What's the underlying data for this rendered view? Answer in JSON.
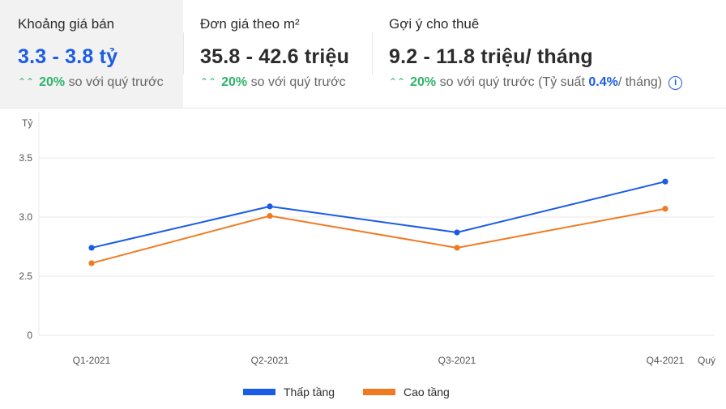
{
  "cards": [
    {
      "title": "Khoảng giá bán",
      "value": "3.3 - 3.8 tỷ",
      "change_arrow": "⌃⌃",
      "change_pct": "20%",
      "change_text": "so với quý trước"
    },
    {
      "title": "Đơn giá theo m²",
      "value": "35.8 - 42.6 triệu",
      "change_arrow": "⌃⌃",
      "change_pct": "20%",
      "change_text": "so với quý trước"
    },
    {
      "title": "Gợi ý cho thuê",
      "value": "9.2 - 11.8 triệu/ tháng",
      "change_arrow": "⌃⌃",
      "change_pct": "20%",
      "change_text": "so với quý trước",
      "yield_prefix": "(Tỷ suất",
      "yield_value": "0.4%",
      "yield_suffix": "/ tháng)",
      "info_icon": "i"
    }
  ],
  "colors": {
    "accent": "#1a5ce6",
    "up": "#2fb36b",
    "series1": "#1a5ce6",
    "series2": "#f07a22"
  },
  "chart_data": {
    "type": "line",
    "ylabel": "Tỷ",
    "xlabel": "Quý",
    "categories": [
      "Q1-2021",
      "Q2-2021",
      "Q3-2021",
      "Q4-2021"
    ],
    "yticks": [
      "0",
      "2.5",
      "3.0",
      "3.5"
    ],
    "series": [
      {
        "name": "Thấp tầng",
        "color": "#1a5ce6",
        "values": [
          2.74,
          3.09,
          2.87,
          3.3
        ]
      },
      {
        "name": "Cao tầng",
        "color": "#f07a22",
        "values": [
          2.61,
          3.01,
          2.74,
          3.07
        ]
      }
    ],
    "grid": true,
    "legend": "bottom"
  }
}
